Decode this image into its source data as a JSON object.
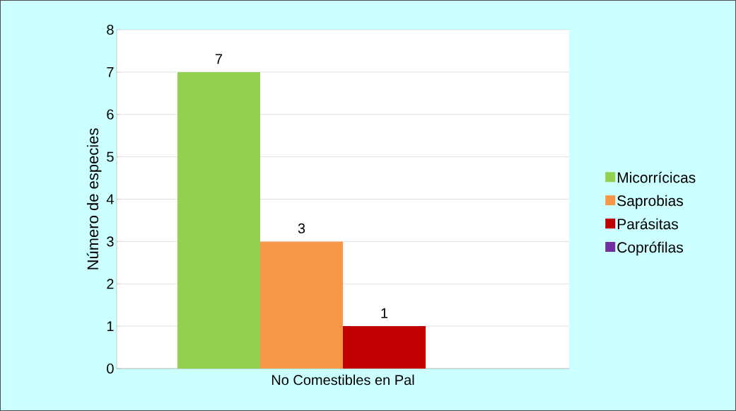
{
  "chart_data": {
    "type": "bar",
    "ylabel": "Número de especies",
    "categories": [
      "No Comestibles en Pal"
    ],
    "series": [
      {
        "name": "Micorrícicas",
        "color": "#92d050",
        "values": [
          7
        ],
        "value_labels": [
          "7"
        ]
      },
      {
        "name": "Saprobias",
        "color": "#f79646",
        "values": [
          3
        ],
        "value_labels": [
          "3"
        ]
      },
      {
        "name": "Parásitas",
        "color": "#c00000",
        "values": [
          1
        ],
        "value_labels": [
          "1"
        ]
      },
      {
        "name": "Coprófilas",
        "color": "#7030a0",
        "values": [
          0
        ],
        "value_labels": [
          null
        ]
      }
    ],
    "ylim": [
      0,
      8
    ],
    "yticks": [
      0,
      1,
      2,
      3,
      4,
      5,
      6,
      7,
      8
    ],
    "grid": "y",
    "legend": "right"
  }
}
